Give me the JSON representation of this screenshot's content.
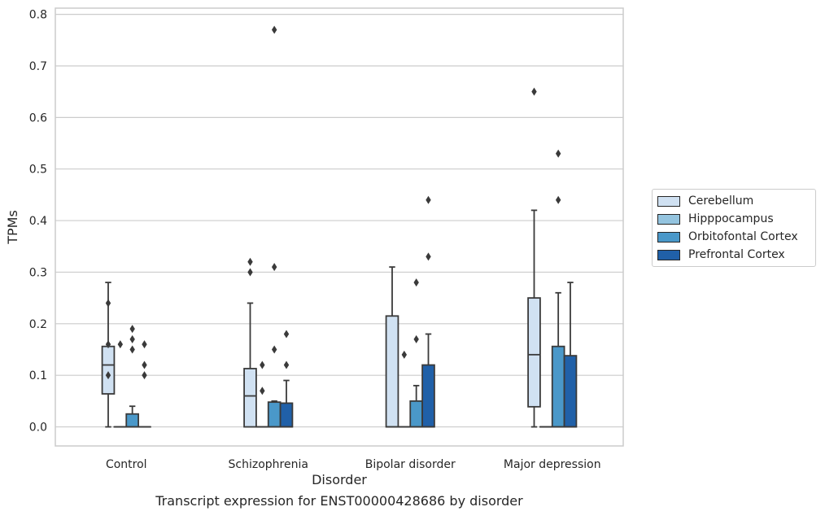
{
  "caption": "Transcript expression for ENST00000428686 by disorder",
  "chart_data": {
    "type": "boxplot",
    "xlabel": "Disorder",
    "ylabel": "TPMs",
    "ylim": [
      -0.037,
      0.812
    ],
    "yticks": [
      "0.0",
      "0.1",
      "0.2",
      "0.3",
      "0.4",
      "0.5",
      "0.6",
      "0.7",
      "0.8"
    ],
    "grid": "horizontal",
    "legend_placement": "outside-right",
    "categories": [
      "Control",
      "Schizophrenia",
      "Bipolar disorder",
      "Major depression"
    ],
    "series": [
      {
        "name": "Cerebellum",
        "color": "#d0e1f2",
        "boxes": [
          {
            "whislo": 0,
            "q1": 0.064,
            "med": 0.12,
            "q3": 0.156,
            "whishi": 0.28,
            "fliers": [
              0.24,
              0.16,
              0.1
            ]
          },
          {
            "whislo": 0,
            "q1": 0,
            "med": 0.06,
            "q3": 0.113,
            "whishi": 0.24,
            "fliers": [
              0.32,
              0.3
            ]
          },
          {
            "whislo": 0,
            "q1": 0,
            "med": 0,
            "q3": 0.215,
            "whishi": 0.31,
            "fliers": []
          },
          {
            "whislo": 0,
            "q1": 0.039,
            "med": 0.14,
            "q3": 0.25,
            "whishi": 0.42,
            "fliers": [
              0.65
            ]
          }
        ]
      },
      {
        "name": "Hipppocampus",
        "color": "#94c4df",
        "boxes": [
          {
            "whislo": 0,
            "q1": 0,
            "med": 0,
            "q3": 0,
            "whishi": 0,
            "fliers": [
              0.16
            ]
          },
          {
            "whislo": 0,
            "q1": 0,
            "med": 0,
            "q3": 0,
            "whishi": 0,
            "fliers": [
              0.12,
              0.07
            ]
          },
          {
            "whislo": 0,
            "q1": 0,
            "med": 0,
            "q3": 0,
            "whishi": 0,
            "fliers": [
              0.14
            ]
          },
          {
            "whislo": 0,
            "q1": 0,
            "med": 0,
            "q3": 0,
            "whishi": 0,
            "fliers": []
          }
        ]
      },
      {
        "name": "Orbitofontal Cortex",
        "color": "#4a98c9",
        "boxes": [
          {
            "whislo": 0,
            "q1": 0,
            "med": 0,
            "q3": 0.025,
            "whishi": 0.04,
            "fliers": [
              0.19,
              0.17,
              0.15
            ]
          },
          {
            "whislo": 0,
            "q1": 0,
            "med": 0,
            "q3": 0.048,
            "whishi": 0.05,
            "fliers": [
              0.77,
              0.31,
              0.15
            ]
          },
          {
            "whislo": 0,
            "q1": 0,
            "med": 0,
            "q3": 0.05,
            "whishi": 0.08,
            "fliers": [
              0.28,
              0.17
            ]
          },
          {
            "whislo": 0,
            "q1": 0,
            "med": 0,
            "q3": 0.156,
            "whishi": 0.26,
            "fliers": [
              0.53,
              0.44
            ]
          }
        ]
      },
      {
        "name": "Prefrontal Cortex",
        "color": "#2060a8",
        "boxes": [
          {
            "whislo": 0,
            "q1": 0,
            "med": 0,
            "q3": 0,
            "whishi": 0,
            "fliers": [
              0.16,
              0.12,
              0.1
            ]
          },
          {
            "whislo": 0,
            "q1": 0,
            "med": 0,
            "q3": 0.046,
            "whishi": 0.09,
            "fliers": [
              0.18,
              0.12
            ]
          },
          {
            "whislo": 0,
            "q1": 0,
            "med": 0,
            "q3": 0.12,
            "whishi": 0.18,
            "fliers": [
              0.44,
              0.33
            ]
          },
          {
            "whislo": 0,
            "q1": 0,
            "med": 0,
            "q3": 0.138,
            "whishi": 0.28,
            "fliers": []
          }
        ]
      }
    ]
  }
}
